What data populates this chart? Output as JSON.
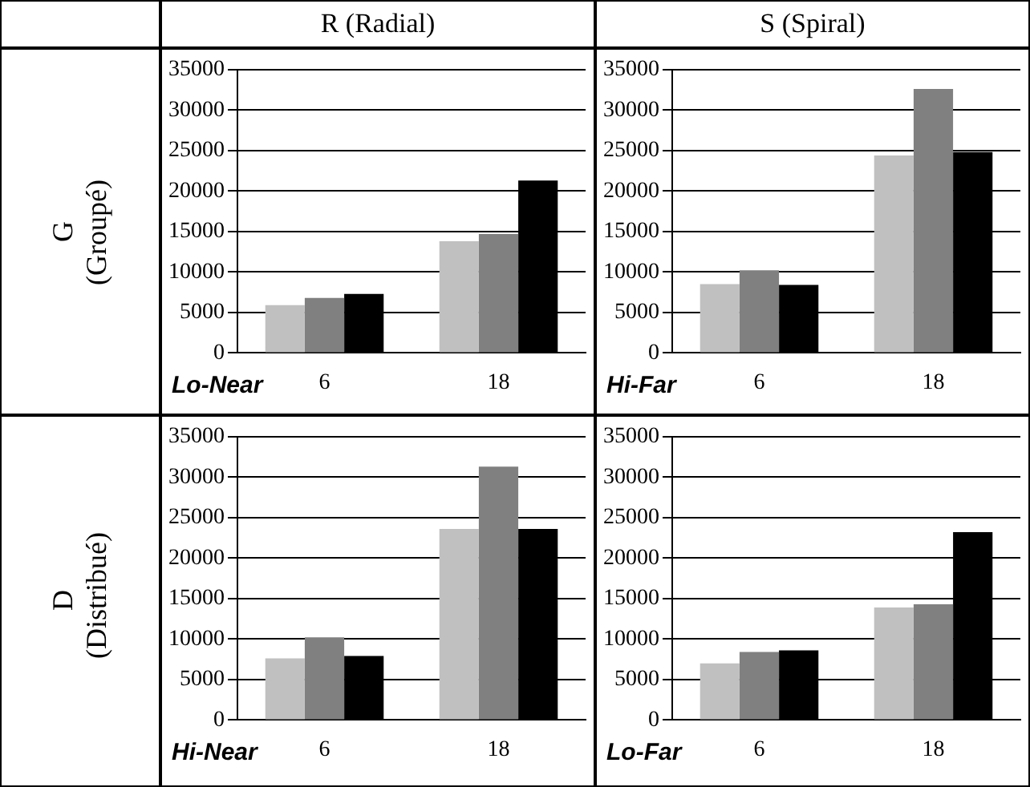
{
  "chart_data": [
    {
      "type": "bar",
      "title": "R (Radial)",
      "ylabel": "G (Groupé)",
      "categories": [
        "6",
        "18"
      ],
      "series": [
        {
          "color": "#c0c0c0",
          "values": [
            5900,
            13800
          ]
        },
        {
          "color": "#808080",
          "values": [
            6800,
            14700
          ]
        },
        {
          "color": "#000000",
          "values": [
            7300,
            21300
          ]
        }
      ],
      "ylim": [
        0,
        35000
      ],
      "yticks": [
        0,
        5000,
        10000,
        15000,
        20000,
        25000,
        30000,
        35000
      ],
      "grid": "y",
      "annotations": [
        "Lo-Near"
      ]
    },
    {
      "type": "bar",
      "title": "S (Spiral)",
      "categories": [
        "6",
        "18"
      ],
      "series": [
        {
          "color": "#c0c0c0",
          "values": [
            8500,
            24400
          ]
        },
        {
          "color": "#808080",
          "values": [
            10200,
            32600
          ]
        },
        {
          "color": "#000000",
          "values": [
            8400,
            24800
          ]
        }
      ],
      "ylim": [
        0,
        35000
      ],
      "yticks": [
        0,
        5000,
        10000,
        15000,
        20000,
        25000,
        30000,
        35000
      ],
      "grid": "y",
      "annotations": [
        "Hi-Far"
      ]
    },
    {
      "type": "bar",
      "ylabel": "D (Distribué)",
      "categories": [
        "6",
        "18"
      ],
      "series": [
        {
          "color": "#c0c0c0",
          "values": [
            7600,
            23600
          ]
        },
        {
          "color": "#808080",
          "values": [
            10200,
            31300
          ]
        },
        {
          "color": "#000000",
          "values": [
            7900,
            23600
          ]
        }
      ],
      "ylim": [
        0,
        35000
      ],
      "yticks": [
        0,
        5000,
        10000,
        15000,
        20000,
        25000,
        30000,
        35000
      ],
      "grid": "y",
      "annotations": [
        "Hi-Near"
      ]
    },
    {
      "type": "bar",
      "categories": [
        "6",
        "18"
      ],
      "series": [
        {
          "color": "#c0c0c0",
          "values": [
            7000,
            13900
          ]
        },
        {
          "color": "#808080",
          "values": [
            8400,
            14300
          ]
        },
        {
          "color": "#000000",
          "values": [
            8600,
            23200
          ]
        }
      ],
      "ylim": [
        0,
        35000
      ],
      "yticks": [
        0,
        5000,
        10000,
        15000,
        20000,
        25000,
        30000,
        35000
      ],
      "grid": "y",
      "annotations": [
        "Lo-Far"
      ]
    }
  ]
}
